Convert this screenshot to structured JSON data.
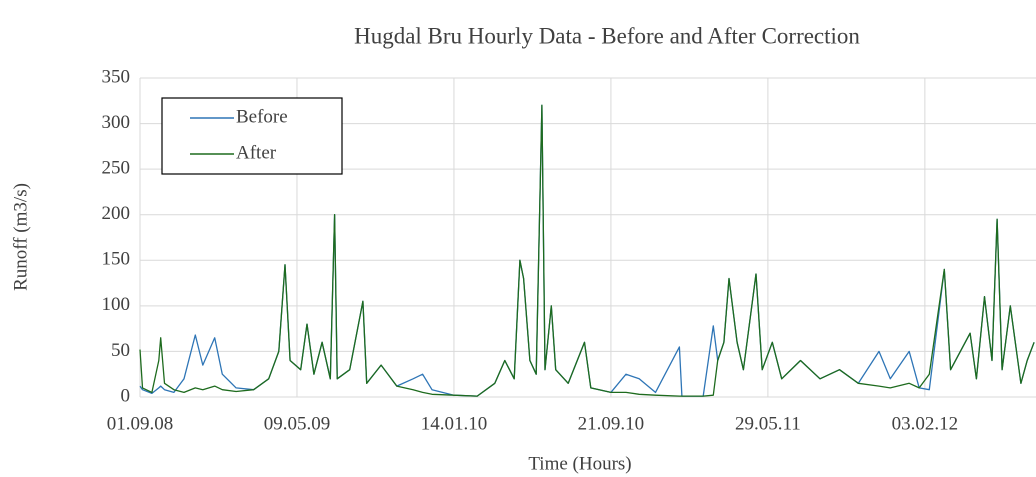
{
  "chart_data": {
    "type": "line",
    "title": "Hugdal Bru Hourly Data - Before and After Correction",
    "x_label": "Time (Hours)",
    "y_label": "Runoff (m3/s)",
    "x": [
      "2008-09-01",
      "2008-09-05",
      "2008-09-20",
      "2008-10-01",
      "2008-10-04",
      "2008-10-10",
      "2008-10-25",
      "2008-11-10",
      "2008-11-28",
      "2008-12-10",
      "2008-12-29",
      "2009-01-10",
      "2009-02-01",
      "2009-03-01",
      "2009-03-25",
      "2009-04-10",
      "2009-04-20",
      "2009-04-28",
      "2009-05-15",
      "2009-05-25",
      "2009-06-05",
      "2009-06-18",
      "2009-07-01",
      "2009-07-08",
      "2009-07-12",
      "2009-08-01",
      "2009-08-22",
      "2009-08-28",
      "2009-09-20",
      "2009-10-15",
      "2009-11-10",
      "2009-11-25",
      "2009-12-10",
      "2010-01-14",
      "2010-02-20",
      "2010-03-20",
      "2010-04-05",
      "2010-04-20",
      "2010-04-29",
      "2010-05-05",
      "2010-05-15",
      "2010-05-25",
      "2010-06-03",
      "2010-06-08",
      "2010-06-18",
      "2010-06-25",
      "2010-07-15",
      "2010-08-10",
      "2010-08-20",
      "2010-09-21",
      "2010-10-15",
      "2010-11-05",
      "2010-12-01",
      "2011-01-08",
      "2011-01-12",
      "2011-02-15",
      "2011-03-03",
      "2011-03-10",
      "2011-03-20",
      "2011-03-28",
      "2011-04-10",
      "2011-04-20",
      "2011-05-10",
      "2011-05-20",
      "2011-06-05",
      "2011-06-20",
      "2011-07-20",
      "2011-08-20",
      "2011-09-20",
      "2011-10-20",
      "2011-11-22",
      "2011-12-10",
      "2012-01-09",
      "2012-01-25",
      "2012-02-10",
      "2012-03-05",
      "2012-03-15",
      "2012-04-15",
      "2012-04-25",
      "2012-05-08",
      "2012-05-20",
      "2012-05-28",
      "2012-06-05",
      "2012-06-18",
      "2012-07-05",
      "2012-07-15",
      "2012-07-26"
    ],
    "series": [
      {
        "name": "Before",
        "color": "#2e75b6",
        "values": [
          12,
          8,
          4,
          10,
          12,
          8,
          5,
          20,
          68,
          35,
          65,
          25,
          10,
          8,
          20,
          50,
          145,
          40,
          30,
          80,
          25,
          60,
          20,
          200,
          20,
          30,
          105,
          15,
          35,
          12,
          20,
          25,
          8,
          2,
          1,
          15,
          40,
          20,
          150,
          130,
          40,
          25,
          320,
          30,
          100,
          30,
          15,
          60,
          10,
          5,
          25,
          20,
          5,
          55,
          1,
          1,
          78,
          40,
          60,
          130,
          60,
          30,
          135,
          30,
          60,
          20,
          40,
          20,
          30,
          15,
          50,
          20,
          50,
          10,
          8,
          140,
          30,
          70,
          20,
          110,
          40,
          195,
          30,
          100,
          15,
          40,
          60
        ]
      },
      {
        "name": "After",
        "color": "#1e6b1e",
        "values": [
          52,
          10,
          5,
          40,
          65,
          15,
          8,
          5,
          10,
          8,
          12,
          8,
          6,
          8,
          20,
          50,
          145,
          40,
          30,
          80,
          25,
          60,
          20,
          200,
          20,
          30,
          105,
          15,
          35,
          12,
          8,
          5,
          3,
          2,
          1,
          15,
          40,
          20,
          150,
          130,
          40,
          25,
          320,
          30,
          100,
          30,
          15,
          60,
          10,
          5,
          5,
          3,
          2,
          1,
          1,
          1,
          2,
          40,
          60,
          130,
          60,
          30,
          135,
          30,
          60,
          20,
          40,
          20,
          30,
          15,
          12,
          10,
          15,
          10,
          25,
          140,
          30,
          70,
          20,
          110,
          40,
          195,
          30,
          100,
          15,
          40,
          60
        ]
      }
    ],
    "xlim": [
      "2008-09-01",
      "2012-07-29"
    ],
    "xticks": [
      {
        "value": "2008-09-01",
        "label": "01.09.08"
      },
      {
        "value": "2009-05-09",
        "label": "09.05.09"
      },
      {
        "value": "2010-01-14",
        "label": "14.01.10"
      },
      {
        "value": "2010-09-21",
        "label": "21.09.10"
      },
      {
        "value": "2011-05-29",
        "label": "29.05.11"
      },
      {
        "value": "2012-02-03",
        "label": "03.02.12"
      }
    ],
    "ylim": [
      0,
      350
    ],
    "yticks": [
      0,
      50,
      100,
      150,
      200,
      250,
      300,
      350
    ],
    "grid": true,
    "legend": "upper left"
  }
}
